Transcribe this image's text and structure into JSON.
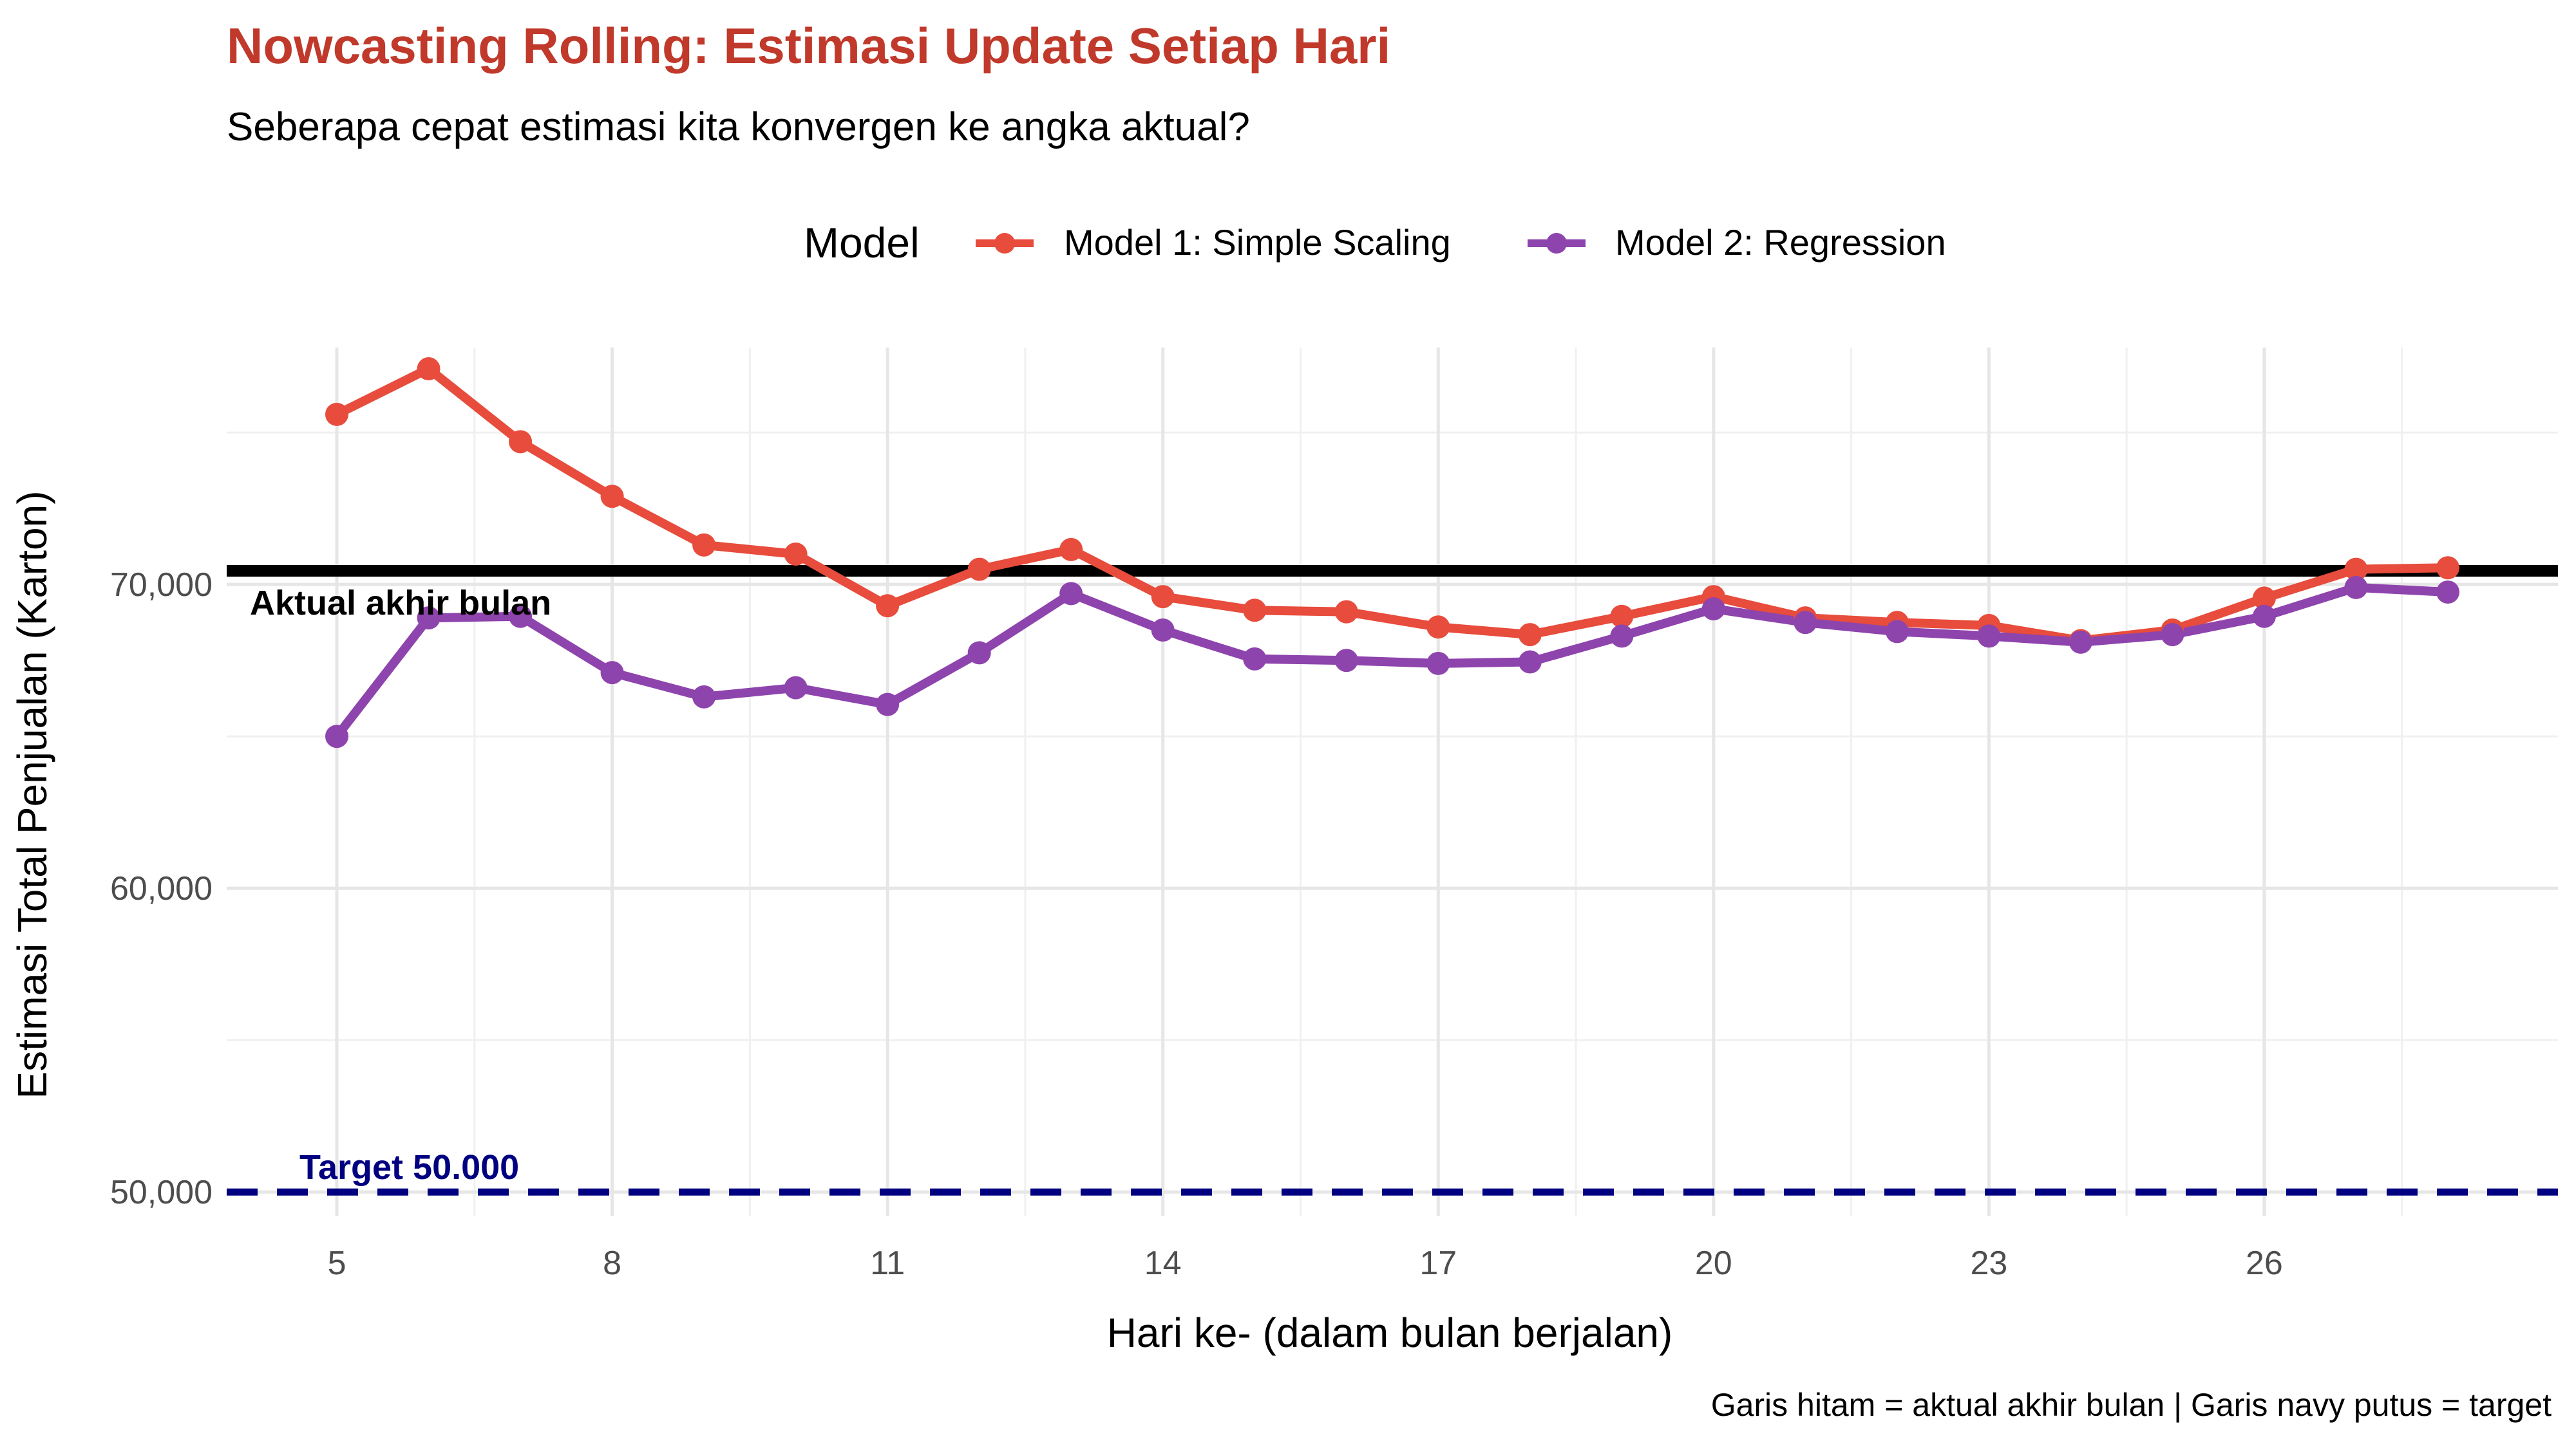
{
  "chart_data": {
    "type": "line",
    "title": "Nowcasting Rolling: Estimasi Update Setiap Hari",
    "subtitle": "Seberapa cepat estimasi kita konvergen ke angka aktual?",
    "xlabel": "Hari ke- (dalam bulan berjalan)",
    "ylabel": "Estimasi Total Penjualan (Karton)",
    "caption": "Garis hitam = aktual akhir bulan | Garis navy putus = target",
    "legend_title": "Model",
    "legend_position": "top",
    "xlim": [
      3.8,
      29.2
    ],
    "ylim": [
      49200,
      77800
    ],
    "x_ticks": [
      5,
      8,
      11,
      14,
      17,
      20,
      23,
      26
    ],
    "y_ticks": [
      50000,
      60000,
      70000
    ],
    "x_tick_labels": [
      "5",
      "8",
      "11",
      "14",
      "17",
      "20",
      "23",
      "26"
    ],
    "y_tick_labels": [
      "50,000",
      "60,000",
      "70,000"
    ],
    "grid": true,
    "x": [
      5,
      6,
      7,
      8,
      9,
      10,
      11,
      12,
      13,
      14,
      15,
      16,
      17,
      18,
      19,
      20,
      21,
      22,
      23,
      24,
      25,
      26,
      27,
      28
    ],
    "series": [
      {
        "name": "Model 1: Simple Scaling",
        "color": "#e74c3c",
        "values": [
          75600,
          77100,
          74700,
          72900,
          71300,
          71000,
          69300,
          70500,
          71150,
          69600,
          69150,
          69100,
          68600,
          68350,
          68950,
          69600,
          68900,
          68750,
          68650,
          68150,
          68500,
          69550,
          70500,
          70550
        ]
      },
      {
        "name": "Model 2: Regression",
        "color": "#8e44ad",
        "values": [
          65000,
          68900,
          68950,
          67100,
          66300,
          66600,
          66050,
          67750,
          69700,
          68500,
          67550,
          67500,
          67400,
          67450,
          68300,
          69200,
          68750,
          68450,
          68300,
          68100,
          68350,
          68950,
          69900,
          69750
        ]
      }
    ],
    "reference_lines": [
      {
        "label": "Aktual akhir bulan",
        "value": 70450,
        "color": "#000000",
        "style": "solid"
      },
      {
        "label": "Target 50.000",
        "value": 50000,
        "color": "#000080",
        "style": "dashed"
      }
    ]
  }
}
